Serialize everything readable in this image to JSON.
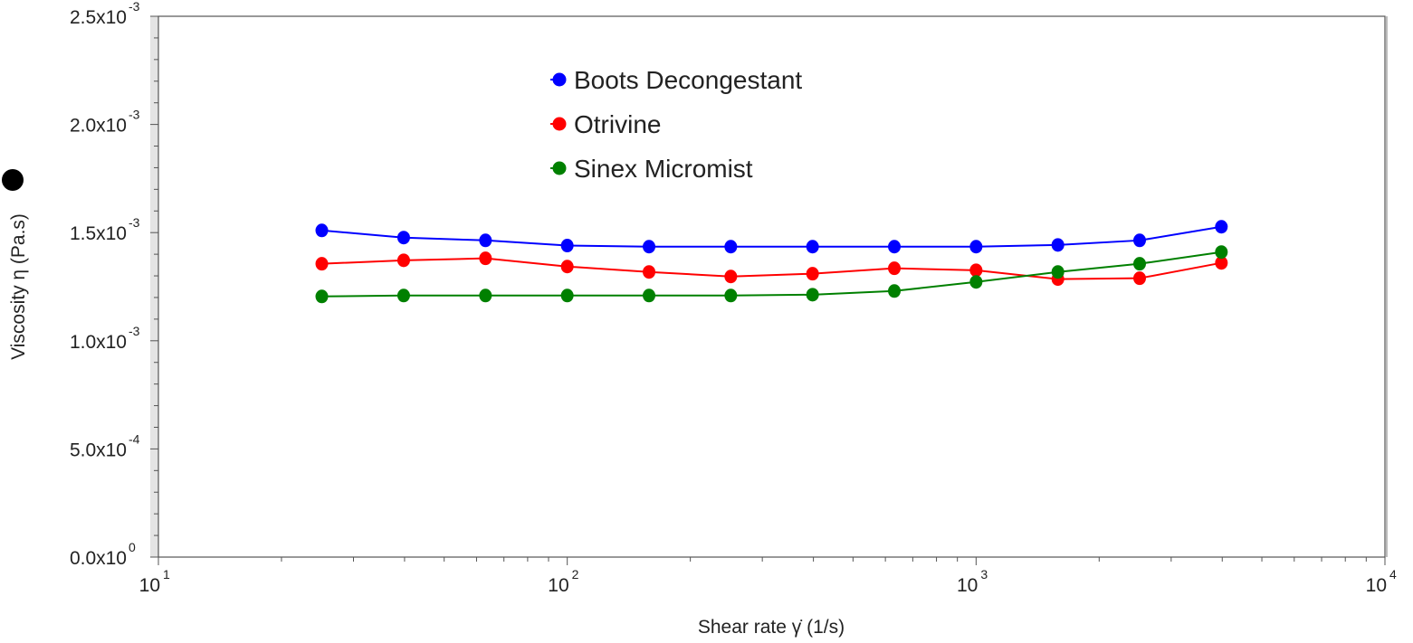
{
  "chart_data": {
    "type": "line",
    "title": "",
    "xlabel": "Shear rate γ̇  (1/s)",
    "ylabel": "Viscosity η  (Pa.s)",
    "xscale": "log",
    "xlim": [
      10,
      10000
    ],
    "ylim": [
      0,
      0.0025
    ],
    "x_ticks": [
      {
        "value": 10,
        "base": "10",
        "exp": "1"
      },
      {
        "value": 100,
        "base": "10",
        "exp": "2"
      },
      {
        "value": 1000,
        "base": "10",
        "exp": "3"
      },
      {
        "value": 10000,
        "base": "10",
        "exp": "4"
      }
    ],
    "y_ticks": [
      {
        "value": 0,
        "mant": "0.0x10",
        "exp": "0"
      },
      {
        "value": 0.0005,
        "mant": "5.0x10",
        "exp": "-4"
      },
      {
        "value": 0.001,
        "mant": "1.0x10",
        "exp": "-3"
      },
      {
        "value": 0.0015,
        "mant": "1.5x10",
        "exp": "-3"
      },
      {
        "value": 0.002,
        "mant": "2.0x10",
        "exp": "-3"
      },
      {
        "value": 0.0025,
        "mant": "2.5x10",
        "exp": "-3"
      }
    ],
    "legend_position": "top-center",
    "x": [
      25.1,
      39.8,
      63.1,
      100,
      158.5,
      251.2,
      398.1,
      631,
      1000,
      1585,
      2512,
      3981
    ],
    "series": [
      {
        "name": "Boots Decongestant",
        "color": "#0000ff",
        "values": [
          0.00151,
          0.001477,
          0.001464,
          0.00144,
          0.001435,
          0.001435,
          0.001435,
          0.001435,
          0.001435,
          0.001443,
          0.001464,
          0.001527
        ]
      },
      {
        "name": "Otrivine",
        "color": "#ff0000",
        "values": [
          0.001356,
          0.001372,
          0.001381,
          0.001343,
          0.001318,
          0.001297,
          0.00131,
          0.001335,
          0.001326,
          0.001285,
          0.001289,
          0.00136
        ]
      },
      {
        "name": "Sinex Micromist",
        "color": "#008000",
        "values": [
          0.001205,
          0.001209,
          0.001209,
          0.001209,
          0.001209,
          0.001209,
          0.001213,
          0.00123,
          0.001272,
          0.001318,
          0.001356,
          0.00141
        ]
      }
    ]
  }
}
